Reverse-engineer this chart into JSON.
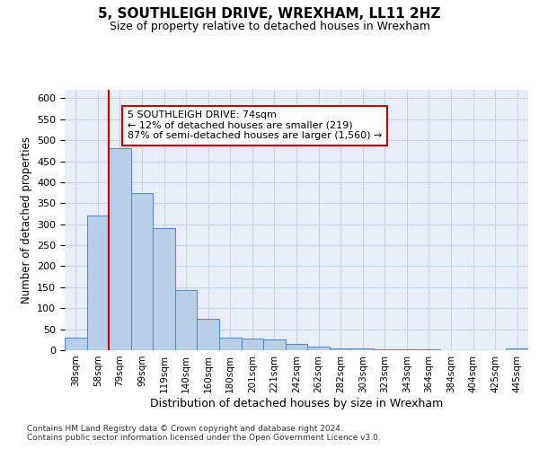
{
  "title": "5, SOUTHLEIGH DRIVE, WREXHAM, LL11 2HZ",
  "subtitle": "Size of property relative to detached houses in Wrexham",
  "xlabel": "Distribution of detached houses by size in Wrexham",
  "ylabel": "Number of detached properties",
  "categories": [
    "38sqm",
    "58sqm",
    "79sqm",
    "99sqm",
    "119sqm",
    "140sqm",
    "160sqm",
    "180sqm",
    "201sqm",
    "221sqm",
    "242sqm",
    "262sqm",
    "282sqm",
    "303sqm",
    "323sqm",
    "343sqm",
    "364sqm",
    "384sqm",
    "404sqm",
    "425sqm",
    "445sqm"
  ],
  "values": [
    30,
    320,
    480,
    375,
    290,
    143,
    75,
    30,
    28,
    25,
    15,
    8,
    5,
    5,
    3,
    3,
    3,
    0,
    0,
    0,
    5
  ],
  "bar_color": "#b8cfe8",
  "bar_edge_color": "#5b8dc8",
  "vline_color": "#cc0000",
  "annotation_text": "5 SOUTHLEIGH DRIVE: 74sqm\n← 12% of detached houses are smaller (219)\n87% of semi-detached houses are larger (1,560) →",
  "annotation_box_color": "#cc0000",
  "ylim": [
    0,
    620
  ],
  "yticks": [
    0,
    50,
    100,
    150,
    200,
    250,
    300,
    350,
    400,
    450,
    500,
    550,
    600
  ],
  "grid_color": "#c8d4e8",
  "background_color": "#e8eef8",
  "footer_line1": "Contains HM Land Registry data © Crown copyright and database right 2024.",
  "footer_line2": "Contains public sector information licensed under the Open Government Licence v3.0."
}
